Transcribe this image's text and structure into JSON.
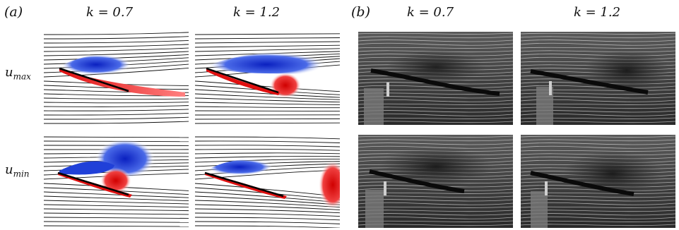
{
  "figure": {
    "panel_a_label": "(a)",
    "panel_b_label": "(b)",
    "columns": [
      {
        "k_label": "k = 0.7"
      },
      {
        "k_label": "k = 1.2"
      },
      {
        "k_label": "k = 0.7"
      },
      {
        "k_label": "k = 1.2"
      }
    ],
    "rows": [
      {
        "label_main": "u",
        "label_sub": "max"
      },
      {
        "label_main": "u",
        "label_sub": "min"
      }
    ],
    "colors": {
      "positive_vorticity": "#e01010",
      "negative_vorticity": "#1030d0",
      "streamline": "#111111",
      "smoke_background": "#3a3a3a"
    }
  }
}
